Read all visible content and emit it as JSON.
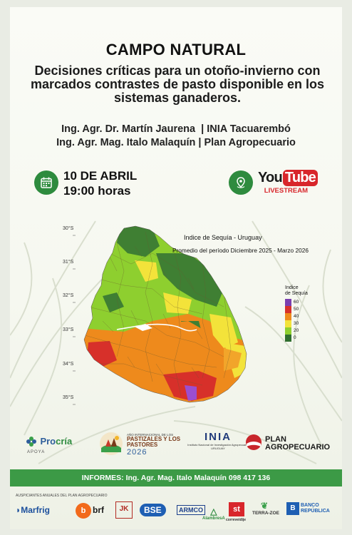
{
  "event": {
    "title": "CAMPO NATURAL",
    "subtitle": "Decisiones críticas para un otoño-invierno con marcados contrastes de pasto disponible en los sistemas ganaderos."
  },
  "speakers": [
    {
      "name": "Ing. Agr. Dr. Martín Jaurena",
      "sep": "|",
      "org": "INIA Tacuarembó"
    },
    {
      "name": "Ing. Agr. Mag. Italo Malaquín",
      "sep": "|",
      "org": "Plan Agropecuario"
    }
  ],
  "schedule": {
    "date": "10 DE ABRIL",
    "time": "19:00 horas"
  },
  "stream": {
    "brand_you": "You",
    "brand_tube": "Tube",
    "label": "LIVESTREAM"
  },
  "map": {
    "title": "Indice de Sequía - Uruguay",
    "period": "Promedio del período Diciembre 2025 - Marzo 2026",
    "latitudes": [
      "30°S",
      "31°S",
      "32°S",
      "33°S",
      "34°S",
      "35°S"
    ],
    "legend": {
      "title_line1": "Indice",
      "title_line2": "de Sequía",
      "ticks": [
        "60",
        "50",
        "40",
        "30",
        "20",
        "0"
      ],
      "colors": [
        "#7b3fb0",
        "#d7302a",
        "#ee8a1c",
        "#f3e33a",
        "#8ecf2f",
        "#2f6e2f"
      ]
    }
  },
  "partners": {
    "procria": {
      "name_a": "Pro",
      "name_b": "cría",
      "tag": "APOYA"
    },
    "pastizales": {
      "line1": "AÑO INTERNACIONAL DE LOS",
      "line2": "PASTIZALES Y LOS",
      "line3": "PASTORES",
      "year": "2026"
    },
    "inia": {
      "word": "INIA",
      "line1": "Instituto Nacional de Investigación Agropecuaria",
      "line2": "URUGUAY"
    },
    "plan": {
      "line1": "PLAN",
      "line2": "AGROPECUARIO"
    }
  },
  "informes": "INFORMES:  Ing. Agr. Mag. Italo Malaquín 098 417 136",
  "sponsors": {
    "label": "AUSPICIANTES ANUALES DEL PLAN AGROPECUARIO",
    "items": [
      "Marfrig",
      "brf",
      "BSE",
      "ARMCO",
      "AlambresA",
      "correveidije",
      "TERRA-ZOE",
      "BANCO REPÚBLICA"
    ]
  }
}
